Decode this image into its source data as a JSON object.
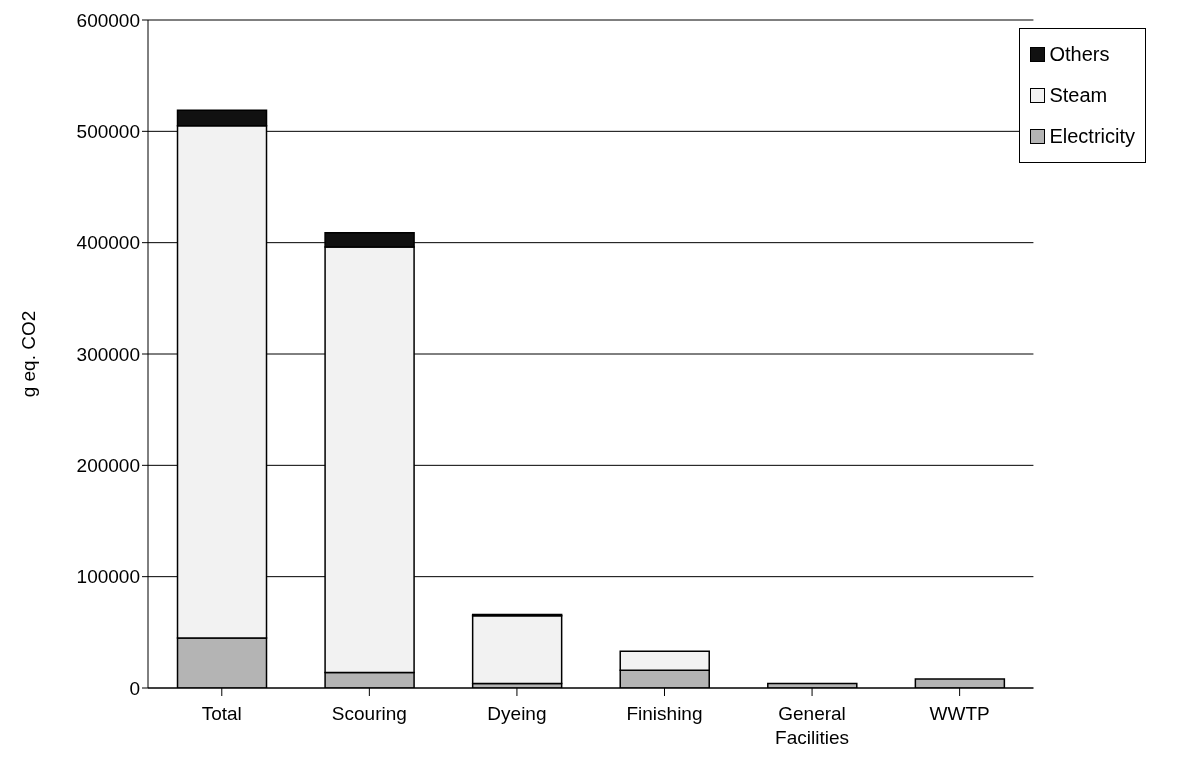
{
  "chart_data": {
    "type": "bar",
    "stacked": true,
    "ylabel": "g eq. CO2",
    "categories": [
      "Total",
      "Scouring",
      "Dyeing",
      "Finishing",
      "General Facilities",
      "WWTP"
    ],
    "series": [
      {
        "name": "Electricity",
        "color": "#b4b4b4",
        "values": [
          45000,
          14000,
          4000,
          16000,
          4000,
          8000
        ]
      },
      {
        "name": "Steam",
        "color": "#f2f2f2",
        "values": [
          460000,
          382000,
          61000,
          17000,
          0,
          0
        ]
      },
      {
        "name": "Others",
        "color": "#111111",
        "values": [
          14000,
          13000,
          1000,
          0,
          0,
          0
        ]
      }
    ],
    "ylim": [
      0,
      600000
    ],
    "yticks": [
      0,
      100000,
      200000,
      300000,
      400000,
      500000,
      600000
    ],
    "grid": "y",
    "legend": "top right"
  }
}
